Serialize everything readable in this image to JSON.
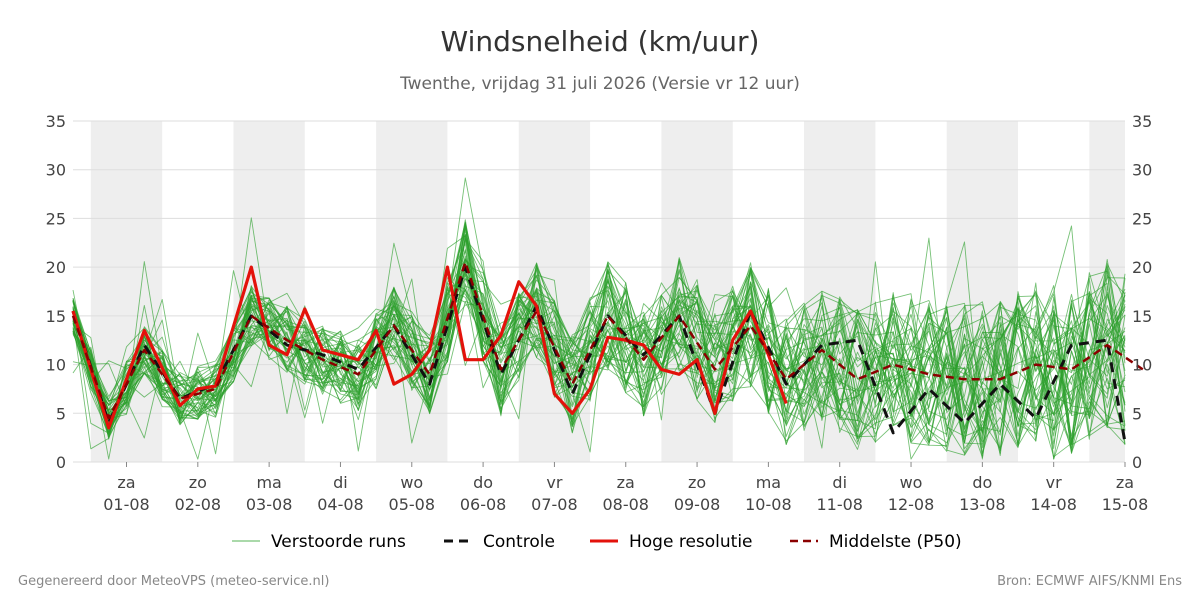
{
  "chart_data": {
    "type": "line",
    "title": "Windsnelheid (km/uur)",
    "subtitle": "Twenthe, vrijdag 31 juli 2026 (Versie vr 12 uur)",
    "ylim": [
      0,
      35
    ],
    "y_ticks": [
      "0",
      "5",
      "10",
      "15",
      "20",
      "25",
      "30",
      "35"
    ],
    "x_range": [
      "2026-07-31T18:00",
      "2026-08-15T12:00"
    ],
    "x_ticks": [
      {
        "day": "za",
        "date": "01-08",
        "x": "2026-08-01T12:00"
      },
      {
        "day": "zo",
        "date": "02-08",
        "x": "2026-08-02T12:00"
      },
      {
        "day": "ma",
        "date": "03-08",
        "x": "2026-08-03T12:00"
      },
      {
        "day": "di",
        "date": "04-08",
        "x": "2026-08-04T12:00"
      },
      {
        "day": "wo",
        "date": "05-08",
        "x": "2026-08-05T12:00"
      },
      {
        "day": "do",
        "date": "06-08",
        "x": "2026-08-06T12:00"
      },
      {
        "day": "vr",
        "date": "07-08",
        "x": "2026-08-07T12:00"
      },
      {
        "day": "za",
        "date": "08-08",
        "x": "2026-08-08T12:00"
      },
      {
        "day": "zo",
        "date": "09-08",
        "x": "2026-08-09T12:00"
      },
      {
        "day": "ma",
        "date": "10-08",
        "x": "2026-08-10T12:00"
      },
      {
        "day": "di",
        "date": "11-08",
        "x": "2026-08-11T12:00"
      },
      {
        "day": "wo",
        "date": "12-08",
        "x": "2026-08-12T12:00"
      },
      {
        "day": "do",
        "date": "13-08",
        "x": "2026-08-13T12:00"
      },
      {
        "day": "vr",
        "date": "14-08",
        "x": "2026-08-14T12:00"
      },
      {
        "day": "za",
        "date": "15-08",
        "x": "2026-08-15T12:00"
      }
    ],
    "shaded_days": [
      "2026-08-01",
      "2026-08-03",
      "2026-08-05",
      "2026-08-07",
      "2026-08-09",
      "2026-08-11",
      "2026-08-13",
      "2026-08-15"
    ],
    "grid": true,
    "legend_position": "bottom",
    "series": [
      {
        "name": "Verstoorde runs",
        "color": "#2ca02c",
        "style": "thin",
        "count": 50
      },
      {
        "name": "Controle",
        "color": "#111111",
        "style": "dashed",
        "x": [
          "2026-07-31T18:00",
          "2026-08-01T06:00",
          "2026-08-01T18:00",
          "2026-08-02T06:00",
          "2026-08-02T18:00",
          "2026-08-03T06:00",
          "2026-08-03T18:00",
          "2026-08-04T06:00",
          "2026-08-04T18:00",
          "2026-08-05T06:00",
          "2026-08-05T18:00",
          "2026-08-06T06:00",
          "2026-08-06T18:00",
          "2026-08-07T06:00",
          "2026-08-07T18:00",
          "2026-08-08T06:00",
          "2026-08-08T18:00",
          "2026-08-09T06:00",
          "2026-08-09T18:00",
          "2026-08-10T06:00",
          "2026-08-10T18:00",
          "2026-08-11T06:00",
          "2026-08-11T18:00",
          "2026-08-12T06:00",
          "2026-08-12T18:00",
          "2026-08-13T06:00",
          "2026-08-13T18:00",
          "2026-08-14T06:00",
          "2026-08-14T18:00",
          "2026-08-15T06:00",
          "2026-08-15T12:00"
        ],
        "values": [
          15.5,
          4,
          12,
          6.5,
          8,
          15,
          12,
          11,
          9.5,
          14,
          8,
          20,
          9,
          16,
          7,
          15,
          11,
          15,
          5,
          15.5,
          8,
          12,
          12.5,
          3,
          7.5,
          4,
          8,
          4.5,
          12,
          12.5,
          2
        ]
      },
      {
        "name": "Hoge resolutie",
        "color": "#e3120b",
        "style": "thick",
        "x": [
          "2026-07-31T18:00",
          "2026-08-01T06:00",
          "2026-08-01T18:00",
          "2026-08-02T06:00",
          "2026-08-02T12:00",
          "2026-08-02T18:00",
          "2026-08-03T06:00",
          "2026-08-03T12:00",
          "2026-08-03T18:00",
          "2026-08-04T00:00",
          "2026-08-04T06:00",
          "2026-08-04T12:00",
          "2026-08-04T18:00",
          "2026-08-05T00:00",
          "2026-08-05T06:00",
          "2026-08-05T12:00",
          "2026-08-05T18:00",
          "2026-08-06T00:00",
          "2026-08-06T06:00",
          "2026-08-06T12:00",
          "2026-08-06T18:00",
          "2026-08-07T00:00",
          "2026-08-07T06:00",
          "2026-08-07T12:00",
          "2026-08-07T18:00",
          "2026-08-08T00:00",
          "2026-08-08T06:00",
          "2026-08-08T12:00",
          "2026-08-08T18:00",
          "2026-08-09T00:00",
          "2026-08-09T06:00",
          "2026-08-09T12:00",
          "2026-08-09T18:00",
          "2026-08-10T00:00",
          "2026-08-10T06:00",
          "2026-08-10T12:00",
          "2026-08-10T18:00"
        ],
        "values": [
          15.5,
          3.5,
          13.5,
          5.8,
          7.5,
          7.8,
          20,
          12,
          11,
          15.7,
          11.5,
          11,
          10.5,
          13.5,
          8,
          9,
          11.5,
          20,
          10.5,
          10.5,
          13,
          18.5,
          16,
          7,
          5,
          7.5,
          12.8,
          12.5,
          12,
          9.5,
          9,
          10.5,
          5,
          12.5,
          15.5,
          11,
          6
        ]
      },
      {
        "name": "Middelste (P50)",
        "color": "#8b0000",
        "style": "dashed",
        "x": [
          "2026-07-31T18:00",
          "2026-08-01T06:00",
          "2026-08-01T18:00",
          "2026-08-02T06:00",
          "2026-08-02T18:00",
          "2026-08-03T06:00",
          "2026-08-03T18:00",
          "2026-08-04T06:00",
          "2026-08-04T18:00",
          "2026-08-05T06:00",
          "2026-08-05T18:00",
          "2026-08-06T06:00",
          "2026-08-06T18:00",
          "2026-08-07T06:00",
          "2026-08-07T18:00",
          "2026-08-08T06:00",
          "2026-08-08T18:00",
          "2026-08-09T06:00",
          "2026-08-09T18:00",
          "2026-08-10T06:00",
          "2026-08-10T18:00",
          "2026-08-11T06:00",
          "2026-08-11T18:00",
          "2026-08-12T06:00",
          "2026-08-12T18:00",
          "2026-08-13T06:00",
          "2026-08-13T18:00",
          "2026-08-14T06:00",
          "2026-08-14T18:00",
          "2026-08-15T06:00",
          "2026-08-15T18:00"
        ],
        "values": [
          15,
          4.5,
          11.5,
          6.5,
          7.5,
          15,
          12.5,
          10.5,
          9,
          14,
          9,
          20.5,
          9.5,
          15.5,
          8,
          15,
          10.5,
          15,
          9.5,
          14,
          8.5,
          11.5,
          8.5,
          10,
          9,
          8.5,
          8.5,
          10,
          9.5,
          12,
          9.5
        ]
      }
    ]
  },
  "legend": {
    "perturbed": "Verstoorde runs",
    "control": "Controle",
    "hires": "Hoge resolutie",
    "median": "Middelste (P50)"
  },
  "footer": {
    "left": "Gegenereerd door MeteoVPS (meteo-service.nl)",
    "right": "Bron: ECMWF AIFS/KNMI Ens"
  }
}
